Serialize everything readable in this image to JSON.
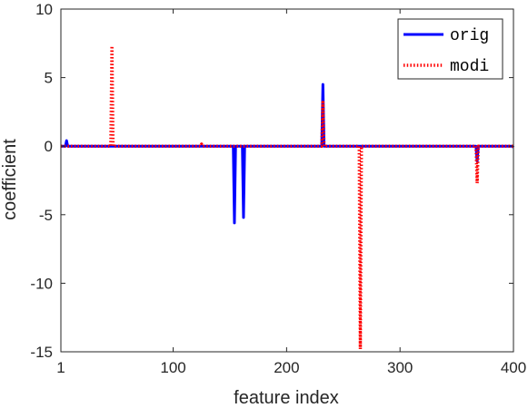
{
  "chart_data": {
    "type": "line",
    "title": "",
    "xlabel": "feature index",
    "ylabel": "coefficient",
    "xlim": [
      1,
      400
    ],
    "ylim": [
      -15,
      10
    ],
    "xticks": [
      1,
      100,
      200,
      300,
      400
    ],
    "xtick_labels": [
      "1",
      "100",
      "200",
      "300",
      "400"
    ],
    "yticks": [
      10,
      5,
      0,
      -5,
      -10,
      -15
    ],
    "ytick_labels": [
      "10",
      "5",
      "0",
      "-5",
      "-10",
      "-15"
    ],
    "grid": false,
    "legend_position": "top-right",
    "series": [
      {
        "name": "orig",
        "color": "#0000ff",
        "style": "solid",
        "points": [
          [
            1,
            0
          ],
          [
            5,
            0
          ],
          [
            6,
            0.4
          ],
          [
            7,
            0
          ],
          [
            153,
            0
          ],
          [
            154,
            -5.6
          ],
          [
            155,
            0
          ],
          [
            161,
            0
          ],
          [
            162,
            -5.2
          ],
          [
            163,
            0
          ],
          [
            231,
            0
          ],
          [
            232,
            4.5
          ],
          [
            233,
            0
          ],
          [
            367,
            0
          ],
          [
            368,
            -1.1
          ],
          [
            369,
            0
          ],
          [
            399,
            0
          ],
          [
            400,
            -0.1
          ]
        ]
      },
      {
        "name": "modi",
        "color": "#ff0000",
        "style": "dotted",
        "points": [
          [
            1,
            0
          ],
          [
            45,
            0
          ],
          [
            46,
            7.3
          ],
          [
            47,
            0
          ],
          [
            124,
            0
          ],
          [
            125,
            0.15
          ],
          [
            126,
            0
          ],
          [
            231,
            0
          ],
          [
            232,
            3.2
          ],
          [
            233,
            0
          ],
          [
            264,
            0
          ],
          [
            265,
            -14.8
          ],
          [
            266,
            0
          ],
          [
            367,
            0
          ],
          [
            368,
            -2.7
          ],
          [
            369,
            0
          ],
          [
            400,
            0
          ]
        ]
      }
    ]
  }
}
